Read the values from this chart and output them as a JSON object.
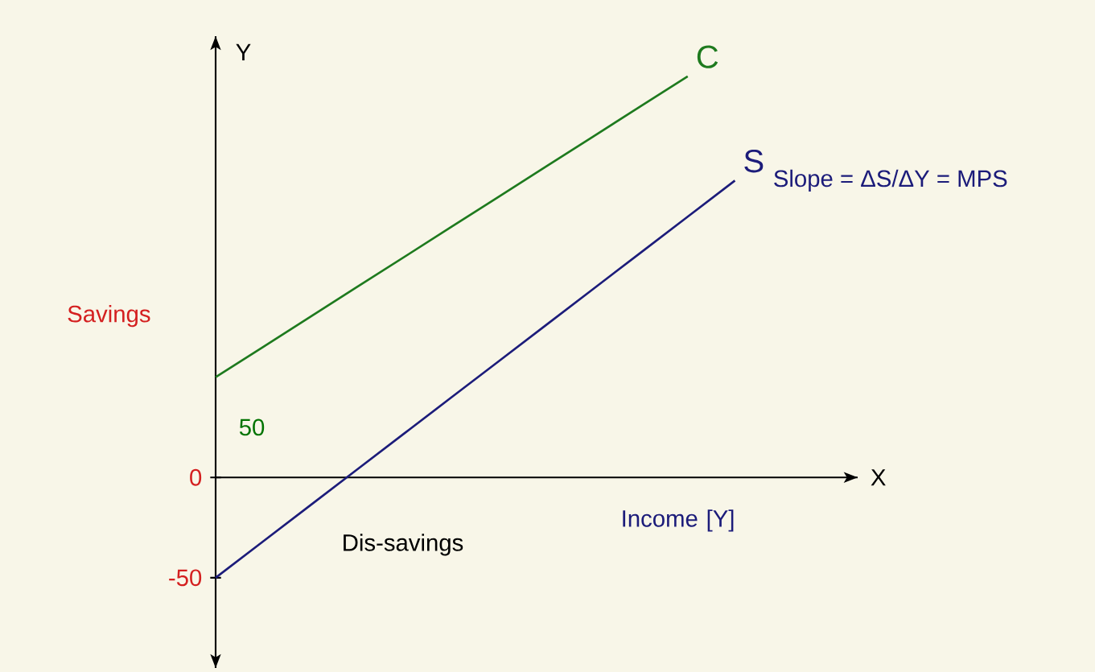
{
  "chart_data": {
    "type": "line",
    "xlabel": "Income [Y]",
    "ylabel": "Savings",
    "categories": [
      null,
      null,
      null,
      null,
      null,
      null,
      null,
      null,
      null,
      null,
      null,
      null
    ],
    "ylim": [
      -95,
      220
    ],
    "yticks": [
      -50,
      0
    ],
    "tick_labels": "y",
    "marker": "none",
    "series": [
      {
        "name": "C",
        "color": "#1e7a1e",
        "values": [
          50,
          65,
          80,
          95,
          110,
          125,
          140,
          155,
          170,
          185,
          200,
          null
        ]
      },
      {
        "name": "S",
        "color": "#1c1c7a",
        "values": [
          -50,
          -32,
          -14,
          4,
          22,
          40,
          58,
          76,
          94,
          112,
          130,
          148
        ]
      }
    ],
    "annotations": [
      "Y",
      "X",
      "50",
      "Dis-savings",
      "Slope = ΔS/ΔY = MPS"
    ]
  }
}
